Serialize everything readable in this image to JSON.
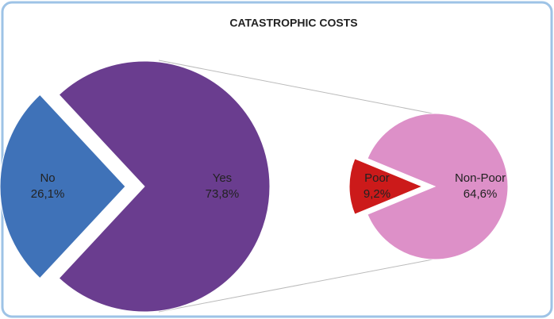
{
  "chart_data": [
    {
      "type": "pie",
      "title": "CATASTROPHIC COSTS",
      "categories": [
        "No",
        "Yes"
      ],
      "values": [
        26.1,
        73.8
      ],
      "value_labels": [
        "26,1%",
        "73,8%"
      ],
      "colors": [
        "#3f72b8",
        "#6a3d8f"
      ]
    },
    {
      "type": "pie",
      "categories": [
        "Poor",
        "Non-Poor"
      ],
      "values": [
        9.2,
        64.6
      ],
      "value_labels": [
        "9,2%",
        "64,6%"
      ],
      "colors": [
        "#cc1a1a",
        "#dd90c8"
      ]
    }
  ]
}
